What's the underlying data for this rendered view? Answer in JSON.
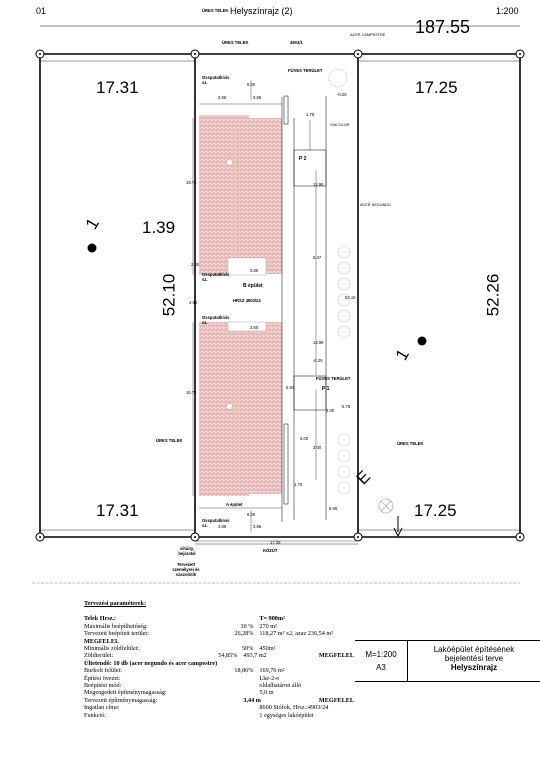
{
  "header": {
    "sheet_no": "01",
    "title": "Helyszínrajz (2)",
    "scale": "1:200"
  },
  "site": {
    "top_label": "ÜRES TELEK",
    "top_plot_label": "ÜRES TELEK",
    "top_plot_no": "4903/1",
    "big_right_top": "187.55",
    "grass_top": "FÜVES TERÜLET",
    "grass_bottom": "FÜVES TERÜLET",
    "building_b": "B épület",
    "building_a": "A épület",
    "hrsz": "HRSZ 4903/24",
    "p2": "P 2",
    "p1": "P 1",
    "road": "KÖZÚT",
    "empty_left": "ÜRES TELEK",
    "empty_right": "ÜRES TELEK",
    "acer_campestre": "ACER CAMPESTRE",
    "acer_negundo": "ACER NEGUNDO",
    "viacolor": "VIACOLOR",
    "dumpster": "Ossputatkivis sz.",
    "gate": "vihány, bejáratal",
    "planned_entry": "Tervezett személyrei és vászolótik",
    "left_top_num": "17.31",
    "left_bottom_num": "17.31",
    "right_top_num": "17.25",
    "right_bottom_num": "17.25",
    "left_length": "52.10",
    "right_length": "52.26",
    "left_mid": "1.39",
    "left_one": "1",
    "right_one": "1",
    "e_letter": "E",
    "bottom_width": "17.28",
    "dims": [
      "6.00",
      "3.86",
      "3.86",
      "1.75",
      "5.94",
      "4.58",
      "12.96",
      "19.75",
      "6.47",
      "2.00",
      "3.86",
      "6.00",
      "16.75",
      "12.96",
      "5.75",
      "3.00",
      "3.00",
      "2.00",
      "1.70",
      "6.86",
      "-0.25",
      "-0.25",
      "52.10",
      "3.86",
      "3.86",
      "3.60"
    ]
  },
  "params": {
    "heading": "Tervezési paraméterek:",
    "rows": [
      {
        "c1": "Telek Hrsz.:",
        "c2": "",
        "c3": "T= 900m²",
        "bold": true
      },
      {
        "c1": "Maximális beépíthetőség:",
        "c2": "30 %",
        "c3": "270 m²"
      },
      {
        "c1": "Tervezett beépített terület:",
        "c2": "26,28%",
        "c3": "118,27 m² x2, azaz 236,54 m²"
      },
      {
        "c1": "MEGFELEL",
        "c2": "",
        "c3": "",
        "bold": true
      },
      {
        "c1": "Minimális zöldfelület:",
        "c2": "50%",
        "c3": "450m²"
      },
      {
        "c1": "Zöldterület:",
        "c2": "54,85%",
        "c3": "493,7 m2",
        "c4": "MEGFELEL"
      },
      {
        "c1": "Ültetendő: 10 db (acer negundo és acer campestre)",
        "c2": "",
        "c3": "",
        "bold": true,
        "wide": true
      },
      {
        "c1": "Burkolt felület:",
        "c2": "18,86%",
        "c3": "169,76 m²"
      },
      {
        "c1": "",
        "c2": "",
        "c3": ""
      },
      {
        "c1": "Építési övezet:",
        "c2": "",
        "c3": "Lke-2-o"
      },
      {
        "c1": "Beépítési mód:",
        "c2": "",
        "c3": "oldalhatáron álló"
      },
      {
        "c1": "Megengedett építménymagasság:",
        "c2": "",
        "c3": "5,0 m"
      },
      {
        "c1": "Tervezett építménymagasság:",
        "c2": "",
        "c3": "3,44 m",
        "c4": "MEGFELEL",
        "bold3": true
      },
      {
        "c1": "",
        "c2": "",
        "c3": ""
      },
      {
        "c1": "",
        "c2": "",
        "c3": ""
      },
      {
        "c1": "Ingatlan címe:",
        "c2": "",
        "c3": "8600 Siófok, Hrsz.:4903/24"
      },
      {
        "c1": "Funkció:",
        "c2": "",
        "c3": "1 egységes lakóépület"
      }
    ]
  },
  "titleblock": {
    "scale": "M=1:200",
    "format": "A3",
    "line1": "Lakóépület építésének",
    "line2": "bejelentési terve",
    "line3": "Helyszínrajz"
  }
}
